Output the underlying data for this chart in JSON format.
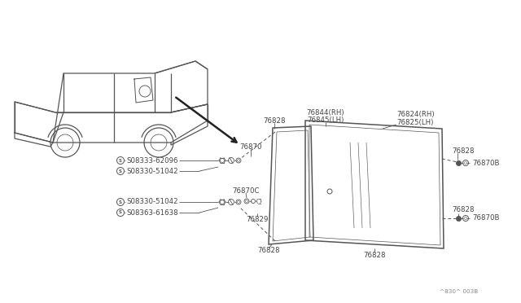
{
  "bg_color": "#ffffff",
  "line_color": "#555555",
  "text_color": "#444444",
  "fig_code": "^830^ 003B",
  "labels": {
    "76828": "76828",
    "76870": "76870",
    "76844RH": "76844(RH)",
    "76845LH": "76845(LH)",
    "76824RH": "76824(RH)",
    "76825LH": "76825(LH)",
    "76870B": "76870B",
    "76870C": "76870C",
    "76829": "76829",
    "s1": "S08333-62096",
    "s2": "S08330-51042",
    "s3": "S08330-51042",
    "s4": "S08363-61638"
  },
  "car": {
    "color": "#555555",
    "lw": 0.9
  }
}
